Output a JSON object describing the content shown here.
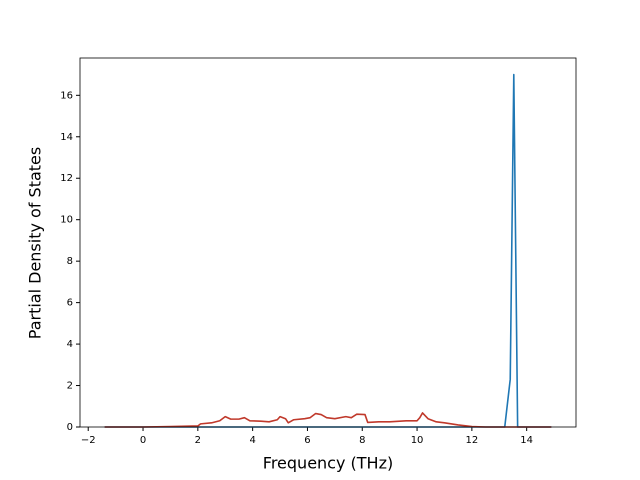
{
  "chart_data": {
    "type": "line",
    "xlabel": "Frequency (THz)",
    "ylabel": "Partial Density of States",
    "xlim": [
      -2.3,
      15.8
    ],
    "ylim": [
      0,
      17.8
    ],
    "xticks": [
      {
        "value": -2,
        "label": "−2"
      },
      0,
      2,
      4,
      6,
      8,
      10,
      12,
      14
    ],
    "yticks": [
      0,
      2,
      4,
      6,
      8,
      10,
      12,
      14,
      16
    ],
    "series": [
      {
        "color": "#1f77b4",
        "x": [
          -1.4,
          13.2,
          13.4,
          13.53,
          13.67,
          14.9
        ],
        "values": [
          0,
          0,
          2.3,
          17,
          0,
          0
        ]
      },
      {
        "color": "#c0392b",
        "x": [
          -1.4,
          0,
          1,
          2,
          2.1,
          2.5,
          2.8,
          3,
          3.2,
          3.5,
          3.7,
          3.9,
          4.3,
          4.6,
          4.9,
          5,
          5.2,
          5.3,
          5.5,
          5.9,
          6.1,
          6.3,
          6.5,
          6.7,
          7,
          7.4,
          7.6,
          7.8,
          8.1,
          8.2,
          8.6,
          9,
          9.6,
          10,
          10.1,
          10.2,
          10.4,
          10.7,
          11,
          11.5,
          12,
          12.5,
          13,
          14,
          14.9
        ],
        "values": [
          0,
          0,
          0.02,
          0.05,
          0.15,
          0.2,
          0.3,
          0.5,
          0.38,
          0.38,
          0.45,
          0.3,
          0.28,
          0.25,
          0.35,
          0.5,
          0.4,
          0.2,
          0.35,
          0.4,
          0.45,
          0.65,
          0.6,
          0.45,
          0.4,
          0.5,
          0.45,
          0.62,
          0.6,
          0.22,
          0.25,
          0.25,
          0.3,
          0.3,
          0.45,
          0.68,
          0.4,
          0.25,
          0.2,
          0.1,
          0.02,
          0,
          0,
          0,
          0
        ]
      }
    ]
  }
}
